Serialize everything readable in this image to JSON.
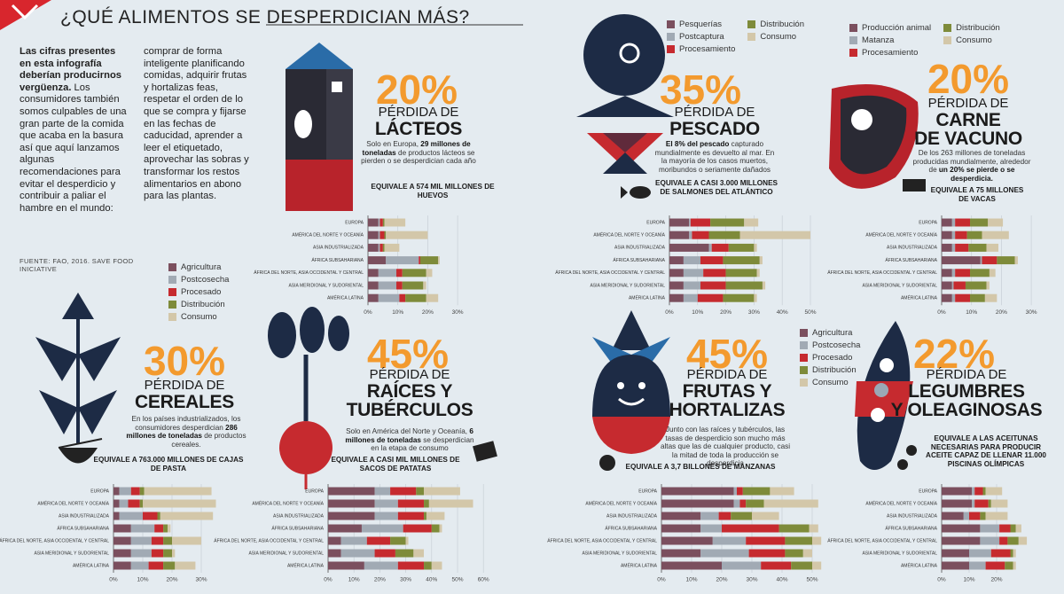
{
  "header": {
    "title": "¿QUÉ ALIMENTOS SE DESPERDICIAN MÁS?"
  },
  "intro": {
    "bold": "Las cifras presentes en esta infografía deberían producirnos vergüenza.",
    "text": " Los consumidores también somos culpables de una gran parte de la comida que acaba en la basura así que aquí lanzamos algunas recomendaciones para evitar el desperdicio y contribuir a paliar el hambre en el mundo: comprar de forma inteligente planificando comidas, adquirir frutas y hortalizas feas, respetar el orden de lo que se compra y fijarse en las fechas de caducidad, aprender a leer el etiquetado, aprovechar las sobras y transformar los restos alimentarios en abono para las plantas."
  },
  "source": "FUENTE: FAO, 2016. SAVE FOOD INICIATIVE",
  "legends": [
    {
      "items": [
        {
          "name": "Agricultura",
          "color": "#7b4f5e"
        },
        {
          "name": "Postcosecha",
          "color": "#a1aab4"
        },
        {
          "name": "Procesado",
          "color": "#c62a2f"
        },
        {
          "name": "Distribución",
          "color": "#7e8b3a"
        },
        {
          "name": "Consumo",
          "color": "#d3c7a9"
        }
      ]
    },
    {
      "items": [
        {
          "name": "Pesquerías",
          "color": "#7b4f5e"
        },
        {
          "name": "Postcaptura",
          "color": "#a1aab4"
        },
        {
          "name": "Procesamiento",
          "color": "#c62a2f"
        },
        {
          "name": "Distribución",
          "color": "#7e8b3a"
        },
        {
          "name": "Consumo",
          "color": "#d3c7a9"
        }
      ]
    },
    {
      "items": [
        {
          "name": "Producción animal",
          "color": "#7b4f5e"
        },
        {
          "name": "Matanza",
          "color": "#a1aab4"
        },
        {
          "name": "Procesamiento",
          "color": "#c62a2f"
        },
        {
          "name": "Distribución",
          "color": "#7e8b3a"
        },
        {
          "name": "Consumo",
          "color": "#d3c7a9"
        }
      ]
    },
    {
      "items": [
        {
          "name": "Agricultura",
          "color": "#7b4f5e"
        },
        {
          "name": "Postcosecha",
          "color": "#a1aab4"
        },
        {
          "name": "Procesado",
          "color": "#c62a2f"
        },
        {
          "name": "Distribución",
          "color": "#7e8b3a"
        },
        {
          "name": "Consumo",
          "color": "#d3c7a9"
        }
      ]
    }
  ],
  "chart_data": [
    {
      "type": "stacked_barh",
      "percent": "20%",
      "title": [
        "PÉRDIDA DE",
        "LÁCTEOS"
      ],
      "description": [
        "Solo en Europa, ",
        "29 millones de toneladas",
        " de productos lácteos se pierden o se desperdician cada año"
      ],
      "equivalence": "EQUIVALE A 574 MIL MILLONES DE HUEVOS",
      "legend": 0,
      "categories": [
        "EUROPA",
        "AMÉRICA DEL NORTE Y OCEANÍA",
        "ASIA INDUSTRIALIZADA",
        "ÁFRICA SUBSAHARIANA",
        "ÁFRICA DEL NORTE, ASIA OCCIDENTAL Y CENTRAL",
        "ASIA MERIDIONAL Y SUDORIENTAL",
        "AMÉRICA LATINA"
      ],
      "series": [
        {
          "values": [
            3.5,
            3.5,
            3.5,
            6,
            3.5,
            3.5,
            3.5
          ]
        },
        {
          "values": [
            0.5,
            0.5,
            0.5,
            11,
            6,
            6,
            7
          ]
        },
        {
          "values": [
            1,
            1.5,
            1,
            0.5,
            2,
            2,
            2
          ]
        },
        {
          "values": [
            0.5,
            0.5,
            0.5,
            6,
            8,
            7,
            7
          ]
        },
        {
          "values": [
            7,
            14,
            5,
            0.5,
            2,
            1,
            4
          ]
        }
      ],
      "xlim": [
        0,
        30
      ],
      "xticks": [
        {
          "value": 0,
          "label": "0%"
        },
        {
          "value": 10,
          "label": "10%"
        },
        {
          "value": 20,
          "label": "20%"
        },
        {
          "value": 30,
          "label": "30%"
        }
      ],
      "grid": true
    },
    {
      "type": "stacked_barh",
      "percent": "35%",
      "title": [
        "PÉRDIDA DE",
        "PESCADO"
      ],
      "description": [
        "",
        "El 8% del pescado",
        " capturado mundialmente es devuelto al mar. En la mayoría de los casos muertos, moribundos o seriamente dañados"
      ],
      "equivalence": "EQUIVALE A CASI 3.000 MILLONES DE SALMONES DEL ATLÁNTICO",
      "legend": 1,
      "categories": [
        "EUROPA",
        "AMÉRICA DEL NORTE Y OCEANÍA",
        "ASIA INDUSTRIALIZADA",
        "ÁFRICA SUBSAHARIANA",
        "ÁFRICA DEL NORTE, ASIA OCCIDENTAL Y CENTRAL",
        "ASIA MERIDIONAL Y SUDORIENTAL",
        "AMÉRICA LATINA"
      ],
      "series": [
        {
          "values": [
            7,
            7,
            14,
            5,
            5,
            5,
            5
          ]
        },
        {
          "values": [
            0.5,
            1,
            1,
            6,
            7,
            6,
            5
          ]
        },
        {
          "values": [
            7,
            6,
            6,
            8,
            8,
            9,
            9
          ]
        },
        {
          "values": [
            12,
            11,
            9,
            13,
            11,
            13,
            11
          ]
        },
        {
          "values": [
            5,
            25,
            1,
            1,
            1,
            1,
            1
          ]
        }
      ],
      "xlim": [
        0,
        50
      ],
      "xticks": [
        {
          "value": 0,
          "label": "0%"
        },
        {
          "value": 10,
          "label": "10%"
        },
        {
          "value": 20,
          "label": "20%"
        },
        {
          "value": 30,
          "label": "30%"
        },
        {
          "value": 40,
          "label": "40%"
        },
        {
          "value": 50,
          "label": "50%"
        }
      ],
      "grid": true
    },
    {
      "type": "stacked_barh",
      "percent": "20%",
      "title": [
        "PÉRDIDA DE",
        "CARNE",
        "DE VACUNO"
      ],
      "description": [
        "De los 263 millones de toneladas producidas mundialmente, alrededor de ",
        "un 20% se pierde o se desperdicia.",
        ""
      ],
      "equivalence": "EQUIVALE A 75 MILLONES DE VACAS",
      "legend": 2,
      "categories": [
        "EUROPA",
        "AMÉRICA DEL NORTE Y OCEANÍA",
        "ASIA INDUSTRIALIZADA",
        "ÁFRICA SUBSAHARIANA",
        "ÁFRICA DEL NORTE, ASIA OCCIDENTAL Y CENTRAL",
        "ASIA MERIDIONAL Y SUDORIENTAL",
        "AMÉRICA LATINA"
      ],
      "series": [
        {
          "values": [
            3.5,
            3.5,
            3.5,
            13,
            3.5,
            3.5,
            3.5
          ]
        },
        {
          "values": [
            1,
            1,
            1,
            0.5,
            1,
            0.5,
            1
          ]
        },
        {
          "values": [
            5,
            4,
            4.5,
            5,
            5,
            4,
            5
          ]
        },
        {
          "values": [
            6,
            5,
            6,
            6,
            6.5,
            7,
            5
          ]
        },
        {
          "values": [
            5,
            9,
            4,
            1,
            2,
            1,
            4
          ]
        }
      ],
      "xlim": [
        0,
        30
      ],
      "xticks": [
        {
          "value": 0,
          "label": "0%"
        },
        {
          "value": 10,
          "label": "10%"
        },
        {
          "value": 20,
          "label": "20%"
        },
        {
          "value": 30,
          "label": "30%"
        }
      ],
      "grid": true
    },
    {
      "type": "stacked_barh",
      "percent": "30%",
      "title": [
        "PÉRDIDA DE",
        "CEREALES"
      ],
      "description": [
        "En los países industrializados, los consumidores desperdician ",
        "286 millones de toneladas",
        " de productos cereales."
      ],
      "equivalence": "EQUIVALE A 763.000 MILLONES DE CAJAS DE PASTA",
      "legend": 0,
      "categories": [
        "EUROPA",
        "AMÉRICA DEL NORTE Y OCEANÍA",
        "ASIA INDUSTRIALIZADA",
        "ÁFRICA SUBSAHARIANA",
        "ÁFRICA DEL NORTE, ASIA OCCIDENTAL Y CENTRAL",
        "ASIA MERIDIONAL Y SUDORIENTAL",
        "AMÉRICA LATINA"
      ],
      "series": [
        {
          "values": [
            2,
            2,
            2,
            6,
            6,
            6,
            6
          ]
        },
        {
          "values": [
            4,
            3,
            8,
            8,
            7,
            7,
            6
          ]
        },
        {
          "values": [
            3,
            4,
            5,
            3,
            4,
            4,
            5
          ]
        },
        {
          "values": [
            1.5,
            1,
            1,
            1.5,
            3,
            3,
            4
          ]
        },
        {
          "values": [
            23,
            25,
            18,
            1,
            10,
            1,
            7
          ]
        }
      ],
      "xlim": [
        0,
        36
      ],
      "xticks": [
        {
          "value": 0,
          "label": "0%"
        },
        {
          "value": 10,
          "label": "10%"
        },
        {
          "value": 20,
          "label": "20%"
        },
        {
          "value": 30,
          "label": "30%"
        }
      ],
      "grid": true
    },
    {
      "type": "stacked_barh",
      "percent": "45%",
      "title": [
        "PÉRDIDA DE",
        "RAÍCES Y",
        "TUBÉRCULOS"
      ],
      "description": [
        "Solo en América del Norte y Oceanía, ",
        "6 millones de toneladas",
        " se desperdician en la etapa de consumo"
      ],
      "equivalence": "EQUIVALE A CASI MIL MILLONES DE SACOS DE PATATAS",
      "legend": 0,
      "categories": [
        "EUROPA",
        "AMÉRICA DEL NORTE Y OCEANÍA",
        "ASIA INDUSTRIALIZADA",
        "ÁFRICA SUBSAHARIANA",
        "ÁFRICA DEL NORTE, ASIA OCCIDENTAL Y CENTRAL",
        "ASIA MERIDIONAL Y SUDORIENTAL",
        "AMÉRICA LATINA"
      ],
      "series": [
        {
          "values": [
            18,
            18,
            18,
            13,
            5,
            5,
            14
          ]
        },
        {
          "values": [
            6,
            9,
            9,
            16,
            10,
            13,
            13
          ]
        },
        {
          "values": [
            10,
            10,
            10,
            11,
            9,
            8,
            10
          ]
        },
        {
          "values": [
            3,
            2,
            1,
            3,
            6,
            7,
            3
          ]
        },
        {
          "values": [
            14,
            17,
            7,
            1,
            1,
            4,
            4
          ]
        }
      ],
      "xlim": [
        0,
        60
      ],
      "xticks": [
        {
          "value": 0,
          "label": "0%"
        },
        {
          "value": 10,
          "label": "10%"
        },
        {
          "value": 20,
          "label": "20%"
        },
        {
          "value": 30,
          "label": "30%"
        },
        {
          "value": 40,
          "label": "40%"
        },
        {
          "value": 50,
          "label": "50%"
        },
        {
          "value": 60,
          "label": "60%"
        }
      ],
      "grid": true
    },
    {
      "type": "stacked_barh",
      "percent": "45%",
      "title": [
        "PÉRDIDA DE",
        "FRUTAS Y",
        "HORTALIZAS"
      ],
      "description": [
        "Junto con las raíces y tubérculos, las tasas de desperdicio son mucho más altas que las de cualquier producto, casi la mitad de toda la producción se desperdicia"
      ],
      "equivalence": "EQUIVALE A 3,7 BILLONES DE MANZANAS",
      "legend": 3,
      "categories": [
        "EUROPA",
        "AMÉRICA DEL NORTE Y OCEANÍA",
        "ASIA INDUSTRIALIZADA",
        "ÁFRICA SUBSAHARIANA",
        "ÁFRICA DEL NORTE, ASIA OCCIDENTAL Y CENTRAL",
        "ASIA MERIDIONAL Y SUDORIENTAL",
        "AMÉRICA LATINA"
      ],
      "series": [
        {
          "values": [
            24,
            24,
            13,
            13,
            17,
            13,
            20
          ]
        },
        {
          "values": [
            1,
            2,
            6,
            7,
            11,
            16,
            13
          ]
        },
        {
          "values": [
            2,
            2,
            4,
            19,
            13,
            12,
            10
          ]
        },
        {
          "values": [
            9,
            6,
            7,
            10,
            9,
            6,
            7
          ]
        },
        {
          "values": [
            8,
            18,
            9,
            3,
            3,
            3,
            3
          ]
        }
      ],
      "xlim": [
        0,
        55
      ],
      "xticks": [
        {
          "value": 0,
          "label": "0%"
        },
        {
          "value": 10,
          "label": "10%"
        },
        {
          "value": 20,
          "label": "20%"
        },
        {
          "value": 30,
          "label": "30%"
        },
        {
          "value": 40,
          "label": "40%"
        },
        {
          "value": 50,
          "label": "50%"
        }
      ],
      "grid": true
    },
    {
      "type": "stacked_barh",
      "percent": "22%",
      "title": [
        "PÉRDIDA DE",
        "LEGUMBRES",
        "Y OLEAGINOSAS"
      ],
      "equivalence": "EQUIVALE A LAS ACEITUNAS NECESARIAS PARA PRODUCIR ACEITE CAPAZ DE LLENAR 11.000 PISCINAS OLÍMPICAS",
      "legend": 3,
      "categories": [
        "EUROPA",
        "AMÉRICA DEL NORTE Y OCEANÍA",
        "ASIA INDUSTRIALIZADA",
        "ÁFRICA SUBSAHARIANA",
        "ÁFRICA DEL NORTE, ASIA OCCIDENTAL Y CENTRAL",
        "ASIA MERIDIONAL Y SUDORIENTAL",
        "AMÉRICA LATINA"
      ],
      "series": [
        {
          "values": [
            11,
            11,
            8,
            14,
            14,
            10,
            10
          ]
        },
        {
          "values": [
            1,
            1,
            2,
            7,
            7,
            8,
            6
          ]
        },
        {
          "values": [
            3,
            5,
            4,
            4,
            3,
            7,
            7
          ]
        },
        {
          "values": [
            1,
            1,
            2,
            2,
            4,
            1,
            3
          ]
        },
        {
          "values": [
            6,
            6,
            8,
            2,
            3,
            1,
            1
          ]
        }
      ],
      "xlim": [
        0,
        32
      ],
      "xticks": [
        {
          "value": 0,
          "label": "0%"
        },
        {
          "value": 10,
          "label": "10%"
        },
        {
          "value": 20,
          "label": "20%"
        }
      ],
      "grid": true
    }
  ]
}
